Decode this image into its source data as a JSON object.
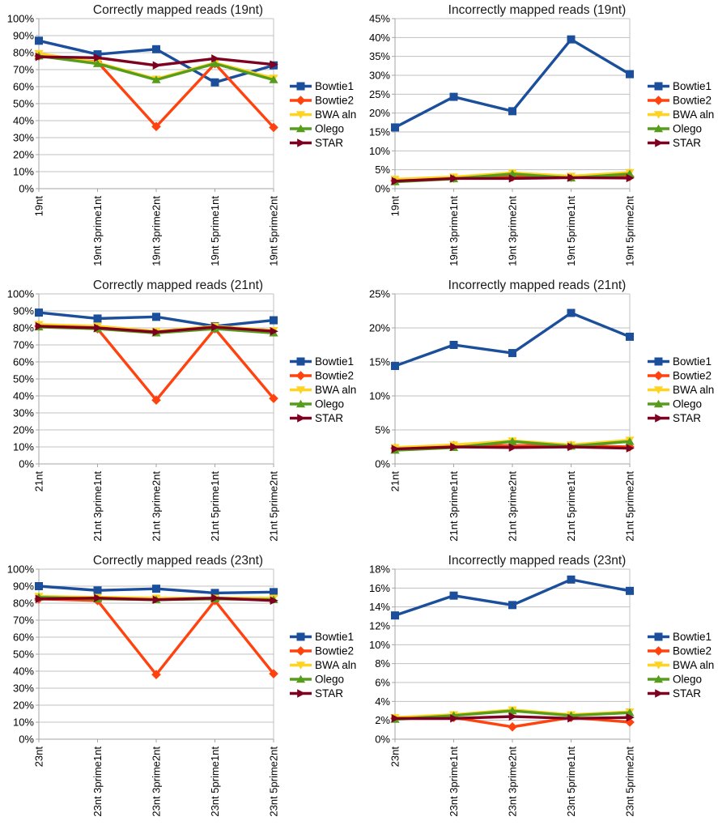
{
  "colors": {
    "background": "#ffffff",
    "grid": "#c0c0c0",
    "axis": "#a6a6a6",
    "title": "#1a1a1a",
    "label": "#000000",
    "legend_text": "#000000"
  },
  "series_styles": [
    {
      "name": "Bowtie1",
      "color": "#1B4F9B",
      "marker": "square"
    },
    {
      "name": "Bowtie2",
      "color": "#FF420E",
      "marker": "diamond"
    },
    {
      "name": "BWA aln",
      "color": "#FFD320",
      "marker": "triangle-down"
    },
    {
      "name": "Olego",
      "color": "#579D1C",
      "marker": "triangle-up"
    },
    {
      "name": "STAR",
      "color": "#7E0021",
      "marker": "arrow-right"
    }
  ],
  "chart_data": [
    {
      "type": "line",
      "title": "Correctly mapped reads (19nt)",
      "categories": [
        "19nt",
        "19nt 3prime1nt",
        "19nt 3prime2nt",
        "19nt 5prime1nt",
        "19nt 5prime2nt"
      ],
      "ylim": [
        0,
        100
      ],
      "ytick_step": 10,
      "yticks": [
        "0%",
        "10%",
        "20%",
        "30%",
        "40%",
        "50%",
        "60%",
        "70%",
        "80%",
        "90%",
        "100%"
      ],
      "grid": "horizontal",
      "legend_position": "right",
      "series": [
        {
          "name": "Bowtie1",
          "values": [
            87,
            79,
            82,
            62.5,
            72.5
          ]
        },
        {
          "name": "Bowtie2",
          "values": [
            78,
            74.5,
            36.5,
            73.5,
            36
          ]
        },
        {
          "name": "BWA aln",
          "values": [
            79.5,
            74,
            64.5,
            74,
            65
          ]
        },
        {
          "name": "Olego",
          "values": [
            78,
            73.5,
            64,
            73.5,
            64
          ]
        },
        {
          "name": "STAR",
          "values": [
            77.5,
            77,
            72.5,
            76.5,
            73
          ]
        }
      ]
    },
    {
      "type": "line",
      "title": "Incorrectly mapped reads (19nt)",
      "categories": [
        "19nt",
        "19nt 3prime1nt",
        "19nt 3prime2nt",
        "19nt 5prime1nt",
        "19nt 5prime2nt"
      ],
      "ylim": [
        0,
        45
      ],
      "ytick_step": 5,
      "yticks": [
        "0%",
        "5%",
        "10%",
        "15%",
        "20%",
        "25%",
        "30%",
        "35%",
        "40%",
        "45%"
      ],
      "grid": "horizontal",
      "legend_position": "right",
      "series": [
        {
          "name": "Bowtie1",
          "values": [
            16.2,
            24.3,
            20.5,
            39.5,
            30.3
          ]
        },
        {
          "name": "Bowtie2",
          "values": [
            2.1,
            2.8,
            3.1,
            3.0,
            3.2
          ]
        },
        {
          "name": "BWA aln",
          "values": [
            2.5,
            3.1,
            4.2,
            3.3,
            4.3
          ]
        },
        {
          "name": "Olego",
          "values": [
            1.8,
            2.6,
            3.9,
            2.8,
            3.9
          ]
        },
        {
          "name": "STAR",
          "values": [
            2.0,
            2.7,
            2.7,
            2.9,
            2.8
          ]
        }
      ]
    },
    {
      "type": "line",
      "title": "Correctly mapped reads (21nt)",
      "categories": [
        "21nt",
        "21nt 3prime1nt",
        "21nt 3prime2nt",
        "21nt 5prime1nt",
        "21nt 5prime2nt"
      ],
      "ylim": [
        0,
        100
      ],
      "ytick_step": 10,
      "yticks": [
        "0%",
        "10%",
        "20%",
        "30%",
        "40%",
        "50%",
        "60%",
        "70%",
        "80%",
        "90%",
        "100%"
      ],
      "grid": "horizontal",
      "legend_position": "right",
      "series": [
        {
          "name": "Bowtie1",
          "values": [
            89,
            85.5,
            86.5,
            81,
            84.5
          ]
        },
        {
          "name": "Bowtie2",
          "values": [
            81,
            79.5,
            37.5,
            79.5,
            38.5
          ]
        },
        {
          "name": "BWA aln",
          "values": [
            82,
            81,
            78,
            81,
            78.5
          ]
        },
        {
          "name": "Olego",
          "values": [
            80.5,
            79.5,
            77,
            79.5,
            77
          ]
        },
        {
          "name": "STAR",
          "values": [
            81,
            80,
            77.5,
            80.5,
            78
          ]
        }
      ]
    },
    {
      "type": "line",
      "title": "Incorrectly mapped reads (21nt)",
      "categories": [
        "21nt",
        "21nt 3prime1nt",
        "21nt 3prime2nt",
        "21nt 5prime1nt",
        "21nt 5prime2nt"
      ],
      "ylim": [
        0,
        25
      ],
      "ytick_step": 5,
      "yticks": [
        "0%",
        "5%",
        "10%",
        "15%",
        "20%",
        "25%"
      ],
      "grid": "horizontal",
      "legend_position": "right",
      "series": [
        {
          "name": "Bowtie1",
          "values": [
            14.4,
            17.5,
            16.3,
            22.2,
            18.7
          ]
        },
        {
          "name": "Bowtie2",
          "values": [
            2.3,
            2.7,
            2.7,
            2.7,
            2.5
          ]
        },
        {
          "name": "BWA aln",
          "values": [
            2.4,
            2.8,
            3.4,
            2.8,
            3.5
          ]
        },
        {
          "name": "Olego",
          "values": [
            2.0,
            2.4,
            3.3,
            2.6,
            3.3
          ]
        },
        {
          "name": "STAR",
          "values": [
            2.2,
            2.5,
            2.4,
            2.5,
            2.3
          ]
        }
      ]
    },
    {
      "type": "line",
      "title": "Correctly mapped reads (23nt)",
      "categories": [
        "23nt",
        "23nt 3prime1nt",
        "23nt 3prime2nt",
        "23nt 5prime1nt",
        "23nt 5prime2nt"
      ],
      "ylim": [
        0,
        100
      ],
      "ytick_step": 10,
      "yticks": [
        "0%",
        "10%",
        "20%",
        "30%",
        "40%",
        "50%",
        "60%",
        "70%",
        "80%",
        "90%",
        "100%"
      ],
      "grid": "horizontal",
      "legend_position": "right",
      "series": [
        {
          "name": "Bowtie1",
          "values": [
            90,
            87.5,
            88.5,
            86,
            86.5
          ]
        },
        {
          "name": "Bowtie2",
          "values": [
            82.5,
            81.5,
            38,
            81.5,
            38.5
          ]
        },
        {
          "name": "BWA aln",
          "values": [
            84,
            83.5,
            83,
            83,
            83
          ]
        },
        {
          "name": "Olego",
          "values": [
            83.5,
            82.5,
            82,
            82.5,
            82
          ]
        },
        {
          "name": "STAR",
          "values": [
            82.5,
            83,
            82,
            83,
            81.5
          ]
        }
      ]
    },
    {
      "type": "line",
      "title": "Incorrectly mapped reads (23nt)",
      "categories": [
        "23nt",
        "23nt 3prime1nt",
        "23nt 3prime2nt",
        "23nt 5prime1nt",
        "23nt 5prime2nt"
      ],
      "ylim": [
        0,
        18
      ],
      "ytick_step": 2,
      "yticks": [
        "0%",
        "2%",
        "4%",
        "6%",
        "8%",
        "10%",
        "12%",
        "14%",
        "16%",
        "18%"
      ],
      "grid": "horizontal",
      "legend_position": "right",
      "series": [
        {
          "name": "Bowtie1",
          "values": [
            13.1,
            15.2,
            14.2,
            16.9,
            15.7
          ]
        },
        {
          "name": "Bowtie2",
          "values": [
            2.2,
            2.3,
            1.3,
            2.3,
            1.8
          ]
        },
        {
          "name": "BWA aln",
          "values": [
            2.3,
            2.6,
            3.1,
            2.6,
            2.9
          ]
        },
        {
          "name": "Olego",
          "values": [
            2.1,
            2.5,
            3.0,
            2.5,
            2.8
          ]
        },
        {
          "name": "STAR",
          "values": [
            2.2,
            2.2,
            2.4,
            2.2,
            2.3
          ]
        }
      ]
    }
  ]
}
